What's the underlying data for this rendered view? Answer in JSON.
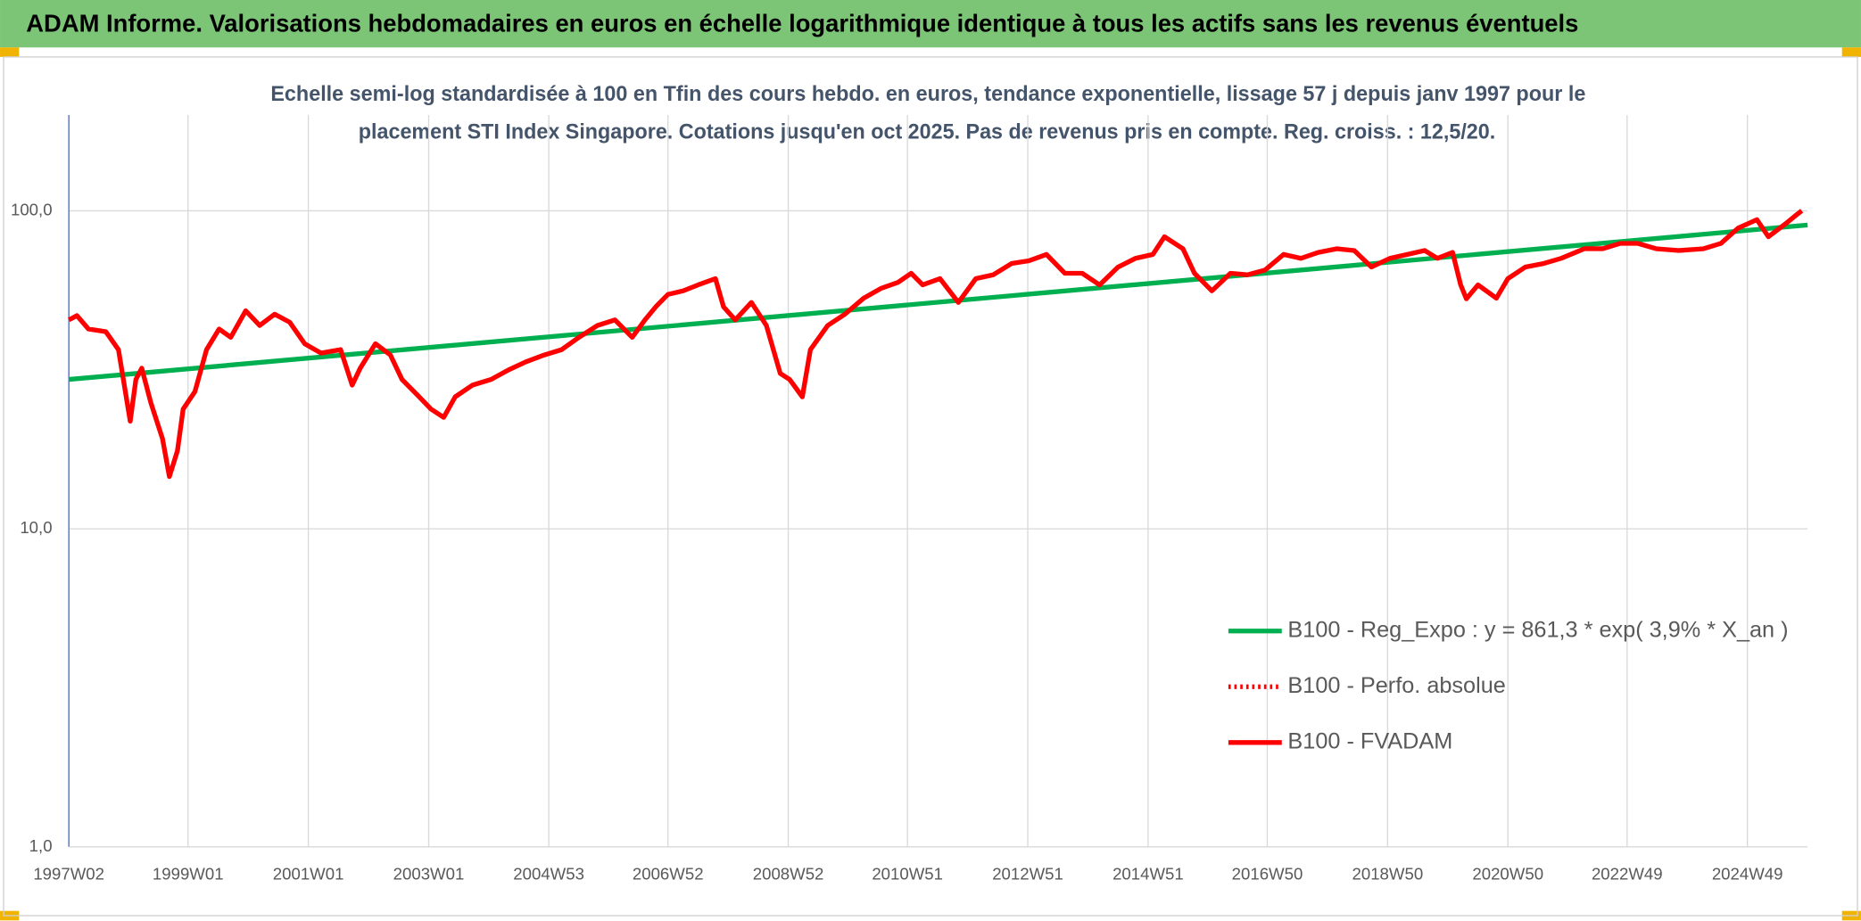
{
  "chart_data": {
    "type": "line",
    "header": "ADAM Informe. Valorisations hebdomadaires en euros en échelle logarithmique identique à tous les actifs sans les revenus éventuels",
    "subtitle": [
      "Echelle semi-log standardisée à 100 en Tfin des cours hebdo. en euros, tendance exponentielle, lissage 57 j depuis janv 1997 pour le",
      "placement STI Index Singapore. Cotations jusqu'en oct 2025. Pas de revenus pris en compte. Reg. croiss. : 12,5/20."
    ],
    "xlim": [
      "1997W02",
      "2025W49"
    ],
    "xticks": [
      "1997W02",
      "1999W01",
      "2001W01",
      "2003W01",
      "2004W53",
      "2006W52",
      "2008W52",
      "2010W51",
      "2012W51",
      "2014W51",
      "2016W50",
      "2018W50",
      "2020W50",
      "2022W49",
      "2024W49"
    ],
    "ylim": [
      1,
      200
    ],
    "yticks": [
      {
        "value": 1,
        "label": "1,0"
      },
      {
        "value": 10,
        "label": "10,0"
      },
      {
        "value": 100,
        "label": "100,0"
      }
    ],
    "log_scale": true,
    "grid": true,
    "legend": "lower right",
    "series": [
      {
        "name": "B100 - Reg_Expo : y = 861,3 * exp( 3,9% *  X_an )",
        "color": "#00b050",
        "style": "solid",
        "x": [
          "1997W02",
          "2025W49"
        ],
        "values": [
          29.5,
          90.2
        ]
      },
      {
        "name": "B100 - Perfo. absolue",
        "color": "#ff0000",
        "style": "dotted"
      },
      {
        "name": "B100 - FVADAM",
        "color": "#ff0000",
        "style": "solid",
        "x": [
          "1997W02",
          "1997W09",
          "1997W19",
          "1997W34",
          "1997W45",
          "1998W03",
          "1998W08",
          "1998W13",
          "1998W21",
          "1998W31",
          "1998W37",
          "1998W44",
          "1998W49",
          "1999W07",
          "1999W17",
          "1999W28",
          "1999W38",
          "1999W51",
          "2000W11",
          "2000W24",
          "2000W37",
          "2000W50",
          "2001W12",
          "2001W29",
          "2001W39",
          "2001W46",
          "2002W07",
          "2002W20",
          "2002W30",
          "2002W45",
          "2003W03",
          "2003W14",
          "2003W24",
          "2003W39",
          "2004W03",
          "2004W18",
          "2004W33",
          "2004W49",
          "2005W12",
          "2005W27",
          "2005W43",
          "2006W06",
          "2006W21",
          "2006W32",
          "2006W42",
          "2006W52",
          "2007W13",
          "2007W26",
          "2007W41",
          "2007W48",
          "2008W06",
          "2008W20",
          "2008W33",
          "2008W45",
          "2009W01",
          "2009W12",
          "2009W19",
          "2009W34",
          "2009W49",
          "2010W13",
          "2010W28",
          "2010W43",
          "2011W02",
          "2011W12",
          "2011W27",
          "2011W43",
          "2012W06",
          "2012W21",
          "2012W37",
          "2012W52",
          "2013W15",
          "2013W31",
          "2013W46",
          "2014W09",
          "2014W25",
          "2014W40",
          "2015W03",
          "2015W13",
          "2015W29",
          "2015W39",
          "2016W02",
          "2016W18",
          "2016W33",
          "2016W48",
          "2017W12",
          "2017W27",
          "2017W42",
          "2018W06",
          "2018W21",
          "2018W36",
          "2018W52",
          "2019W15",
          "2019W30",
          "2019W41",
          "2020W02",
          "2020W09",
          "2020W14",
          "2020W24",
          "2020W40",
          "2020W50",
          "2021W13",
          "2021W29",
          "2021W44",
          "2022W12",
          "2022W28",
          "2022W43",
          "2023W06",
          "2023W22",
          "2023W42",
          "2024W11",
          "2024W26",
          "2024W41",
          "2025W05",
          "2025W15",
          "2025W30",
          "2025W38",
          "2025W44"
        ],
        "values": [
          45.4,
          46.8,
          42.5,
          41.7,
          36.6,
          21.8,
          29.5,
          32,
          24.9,
          19.2,
          14.6,
          17.6,
          23.8,
          27,
          36.6,
          42.5,
          40,
          48.5,
          43.6,
          47.3,
          44.6,
          38.2,
          35.7,
          36.6,
          28.3,
          32,
          38.2,
          35.2,
          29.5,
          26,
          23.8,
          22.4,
          26,
          28.3,
          29.5,
          31.6,
          33.5,
          35.2,
          36.6,
          40,
          43.6,
          45.4,
          40,
          45.4,
          50.2,
          54.6,
          56,
          58.5,
          61.2,
          49.9,
          45.4,
          51.5,
          43.6,
          30.8,
          29.5,
          26,
          36.6,
          43.6,
          47.3,
          53.1,
          57,
          59.6,
          63.6,
          58.5,
          61.2,
          51.5,
          61.2,
          62.9,
          68.3,
          69.6,
          72.9,
          63.6,
          63.6,
          58.5,
          66.6,
          70.9,
          72.9,
          82.9,
          76,
          63.6,
          56,
          63.6,
          62.9,
          65.1,
          72.9,
          70.9,
          74,
          76,
          75,
          66.6,
          70.9,
          72.9,
          75,
          70.9,
          74,
          58.5,
          52.9,
          58.5,
          53.1,
          61.2,
          66.6,
          68.3,
          70.9,
          76,
          76,
          79,
          79,
          76,
          75,
          76,
          79,
          88.2,
          93.8,
          82.9,
          91.1,
          96.2,
          100
        ]
      }
    ]
  }
}
